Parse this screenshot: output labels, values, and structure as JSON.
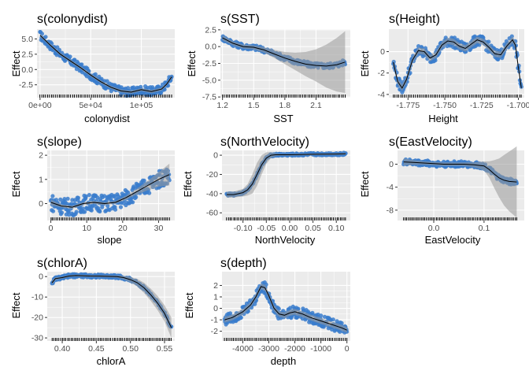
{
  "figure": {
    "ylabel": "Effect"
  },
  "colors": {
    "panel_bg": "#ebebeb",
    "grid": "#ffffff",
    "points": "#3a7ccc",
    "ribbon": "#999999",
    "fit_line": "#000000",
    "rug": "#000000"
  },
  "chart_data": [
    {
      "type": "line",
      "title": "s(colonydist)",
      "xlabel": "colonydist",
      "ylabel": "Effect",
      "xlim": [
        -3000,
        133000
      ],
      "ylim": [
        -4.6,
        6.6
      ],
      "xticks": [
        0,
        50000,
        100000
      ],
      "xtick_labels": [
        "0e+00",
        "5e+04",
        "1e+05"
      ],
      "yticks": [
        -2.5,
        0,
        2.5,
        5
      ],
      "ytick_labels": [
        "-2.5",
        "0.0",
        "2.5",
        "5.0"
      ],
      "grid": true,
      "point_band": 0.7,
      "ribbon_width": 0.25,
      "x": [
        0,
        10000,
        20000,
        30000,
        40000,
        50000,
        60000,
        70000,
        80000,
        90000,
        100000,
        110000,
        120000,
        125000,
        130000
      ],
      "fit": [
        5.6,
        4.0,
        2.5,
        1.4,
        0.3,
        -0.9,
        -2.0,
        -2.9,
        -3.5,
        -3.7,
        -3.3,
        -3.6,
        -3.2,
        -2.4,
        -1.2
      ],
      "rug": [
        0,
        130000
      ]
    },
    {
      "type": "line",
      "title": "s(SST)",
      "xlabel": "SST",
      "ylabel": "Effect",
      "xlim": [
        1.18,
        2.43
      ],
      "ylim": [
        -7.6,
        2.6
      ],
      "xticks": [
        1.2,
        1.5,
        1.8,
        2.1
      ],
      "xtick_labels": [
        "1.2",
        "1.5",
        "1.8",
        "2.1"
      ],
      "yticks": [
        -7.5,
        -5,
        -2.5,
        0,
        2.5
      ],
      "ytick_labels": [
        "-7.5",
        "-5.0",
        "-2.5",
        "0.0",
        "2.5"
      ],
      "grid": true,
      "point_band": 0.4,
      "x": [
        1.2,
        1.3,
        1.4,
        1.5,
        1.6,
        1.7,
        1.8,
        1.9,
        2.0,
        2.1,
        2.2,
        2.3,
        2.38
      ],
      "fit": [
        1.3,
        0.5,
        0.0,
        -0.1,
        -0.5,
        -1.1,
        -1.7,
        -2.2,
        -2.6,
        -2.8,
        -2.9,
        -2.7,
        -2.3
      ],
      "ribbon_halfwidth": [
        0.4,
        0.3,
        0.3,
        0.3,
        0.4,
        0.6,
        0.9,
        1.3,
        1.8,
        2.4,
        3.2,
        4.0,
        4.6
      ],
      "rug": [
        1.2,
        2.38
      ]
    },
    {
      "type": "line",
      "title": "s(Height)",
      "xlabel": "Height",
      "ylabel": "Effect",
      "xlim": [
        -1.788,
        -1.696
      ],
      "ylim": [
        -4.3,
        2.1
      ],
      "xticks": [
        -1.775,
        -1.75,
        -1.725,
        -1.7
      ],
      "xtick_labels": [
        "-1.775",
        "-1.750",
        "-1.725",
        "-1.700"
      ],
      "yticks": [
        -4,
        -2,
        0
      ],
      "ytick_labels": [
        "-4",
        "-2",
        "0"
      ],
      "grid": true,
      "point_band": 0.5,
      "ribbon_width": 0.3,
      "x": [
        -1.785,
        -1.782,
        -1.779,
        -1.776,
        -1.772,
        -1.768,
        -1.764,
        -1.76,
        -1.756,
        -1.752,
        -1.748,
        -1.744,
        -1.74,
        -1.736,
        -1.732,
        -1.728,
        -1.724,
        -1.72,
        -1.716,
        -1.712,
        -1.708,
        -1.704,
        -1.702,
        -1.7,
        -1.698
      ],
      "fit": [
        -1.0,
        -2.8,
        -3.4,
        -2.6,
        -0.8,
        0.1,
        0.0,
        -0.6,
        -0.3,
        0.6,
        1.0,
        0.9,
        0.5,
        0.3,
        0.7,
        1.1,
        0.9,
        0.4,
        -0.2,
        -0.3,
        0.5,
        1.1,
        0.6,
        -1.5,
        -3.4
      ],
      "rug": [
        -1.785,
        -1.698
      ]
    },
    {
      "type": "line",
      "title": "s(slope)",
      "xlabel": "slope",
      "ylabel": "Effect",
      "xlim": [
        -1,
        34.5
      ],
      "ylim": [
        -0.7,
        2.2
      ],
      "xticks": [
        0,
        10,
        20,
        30
      ],
      "xtick_labels": [
        "0",
        "10",
        "20",
        "30"
      ],
      "yticks": [
        0,
        1,
        2
      ],
      "ytick_labels": [
        "0",
        "1",
        "2"
      ],
      "grid": true,
      "point_band": 0.35,
      "x": [
        0,
        3,
        6,
        9,
        12,
        15,
        18,
        21,
        24,
        27,
        30,
        33
      ],
      "fit": [
        0.05,
        -0.1,
        -0.15,
        0.0,
        0.05,
        0.0,
        0.05,
        0.25,
        0.5,
        0.75,
        1.0,
        1.2
      ],
      "ribbon_halfwidth": [
        0.12,
        0.06,
        0.06,
        0.06,
        0.06,
        0.06,
        0.06,
        0.08,
        0.12,
        0.2,
        0.3,
        0.45
      ],
      "rug": [
        0,
        33
      ]
    },
    {
      "type": "line",
      "title": "s(NorthVelocity)",
      "xlabel": "NorthVelocity",
      "ylabel": "Effect",
      "xlim": [
        -0.145,
        0.13
      ],
      "ylim": [
        -68,
        5
      ],
      "xticks": [
        -0.1,
        -0.05,
        0.0,
        0.05,
        0.1
      ],
      "xtick_labels": [
        "-0.10",
        "-0.05",
        "0.00",
        "0.05",
        "0.10"
      ],
      "yticks": [
        -60,
        -40,
        -20,
        0
      ],
      "ytick_labels": [
        "-60",
        "-40",
        "-20",
        "0"
      ],
      "grid": true,
      "point_band": 1.2,
      "x": [
        -0.135,
        -0.12,
        -0.1,
        -0.09,
        -0.08,
        -0.07,
        -0.06,
        -0.05,
        -0.04,
        -0.03,
        -0.02,
        0,
        0.05,
        0.1,
        0.12
      ],
      "fit": [
        -41,
        -41,
        -39,
        -36,
        -30,
        -20,
        -10,
        -3,
        0,
        0.5,
        0.5,
        0.5,
        1,
        1.2,
        1.5
      ],
      "ribbon_halfwidth": [
        3,
        3,
        4,
        6,
        10,
        12,
        10,
        6,
        3,
        1.5,
        1,
        1,
        1,
        1,
        1
      ],
      "rug": [
        -0.135,
        0.12
      ]
    },
    {
      "type": "line",
      "title": "s(EastVelocity)",
      "xlabel": "EastVelocity",
      "ylabel": "Effect",
      "xlim": [
        -0.072,
        0.18
      ],
      "ylim": [
        -9.8,
        2.4
      ],
      "xticks": [
        0.0,
        0.1
      ],
      "xtick_labels": [
        "0.0",
        "0.1"
      ],
      "yticks": [
        -8,
        -4,
        0
      ],
      "ytick_labels": [
        "-8",
        "-4",
        "0"
      ],
      "grid": true,
      "point_band": 0.5,
      "x": [
        -0.06,
        -0.04,
        -0.02,
        0,
        0.02,
        0.04,
        0.06,
        0.08,
        0.1,
        0.11,
        0.12,
        0.13,
        0.14,
        0.15,
        0.165
      ],
      "fit": [
        0.4,
        0.3,
        0.2,
        0.1,
        0.0,
        0.0,
        0.0,
        -0.1,
        -0.3,
        -0.9,
        -1.7,
        -2.4,
        -2.8,
        -3.0,
        -3.1
      ],
      "ribbon_halfwidth": [
        0.6,
        0.4,
        0.3,
        0.3,
        0.3,
        0.3,
        0.3,
        0.4,
        0.8,
        1.4,
        2.4,
        3.4,
        4.4,
        5.2,
        6.2
      ],
      "rug": [
        -0.06,
        0.165
      ]
    },
    {
      "type": "line",
      "title": "s(chlorA)",
      "xlabel": "chlorA",
      "ylabel": "Effect",
      "xlim": [
        0.378,
        0.565
      ],
      "ylim": [
        -31.5,
        2.4
      ],
      "xticks": [
        0.4,
        0.45,
        0.5,
        0.55
      ],
      "xtick_labels": [
        "0.40",
        "0.45",
        "0.50",
        "0.55"
      ],
      "yticks": [
        -30,
        -20,
        -10,
        0
      ],
      "ytick_labels": [
        "-30",
        "-20",
        "-10",
        "0"
      ],
      "grid": true,
      "point_band": 0.8,
      "x": [
        0.385,
        0.39,
        0.4,
        0.41,
        0.42,
        0.44,
        0.46,
        0.48,
        0.49,
        0.5,
        0.51,
        0.52,
        0.53,
        0.54,
        0.55,
        0.56
      ],
      "fit": [
        -3,
        -1,
        -0.5,
        0.3,
        0.5,
        0.3,
        0.2,
        0,
        -0.5,
        -1.5,
        -3,
        -5.5,
        -9,
        -13,
        -18,
        -25
      ],
      "ribbon_halfwidth": [
        1.2,
        0.7,
        0.5,
        0.5,
        0.5,
        0.5,
        0.5,
        0.6,
        0.9,
        1.3,
        1.8,
        2.5,
        3,
        3.5,
        4,
        5
      ],
      "rug": [
        0.385,
        0.56
      ]
    },
    {
      "type": "line",
      "title": "s(depth)",
      "xlabel": "depth",
      "ylabel": "Effect",
      "xlim": [
        -4800,
        130
      ],
      "ylim": [
        -2.85,
        3.2
      ],
      "xticks": [
        -4000,
        -3000,
        -2000,
        -1000,
        0
      ],
      "xtick_labels": [
        "-4000",
        "-3000",
        "-2000",
        "-1000",
        "0"
      ],
      "yticks": [
        -2,
        -1,
        0,
        1,
        2
      ],
      "ytick_labels": [
        "-2",
        "-1",
        "0",
        "1",
        "2"
      ],
      "grid": true,
      "point_band": 0.5,
      "ribbon_width": 0.25,
      "x": [
        -4700,
        -4400,
        -4000,
        -3700,
        -3500,
        -3300,
        -3150,
        -3000,
        -2800,
        -2600,
        -2400,
        -2200,
        -2000,
        -1700,
        -1400,
        -1000,
        -600,
        -200,
        0
      ],
      "fit": [
        -1.0,
        -0.8,
        -0.3,
        0.3,
        1.0,
        1.9,
        1.8,
        1.1,
        0.0,
        -0.5,
        -0.6,
        -0.4,
        -0.3,
        -0.5,
        -0.8,
        -1.1,
        -1.4,
        -1.7,
        -1.9
      ],
      "rug": [
        -4700,
        0
      ]
    }
  ]
}
